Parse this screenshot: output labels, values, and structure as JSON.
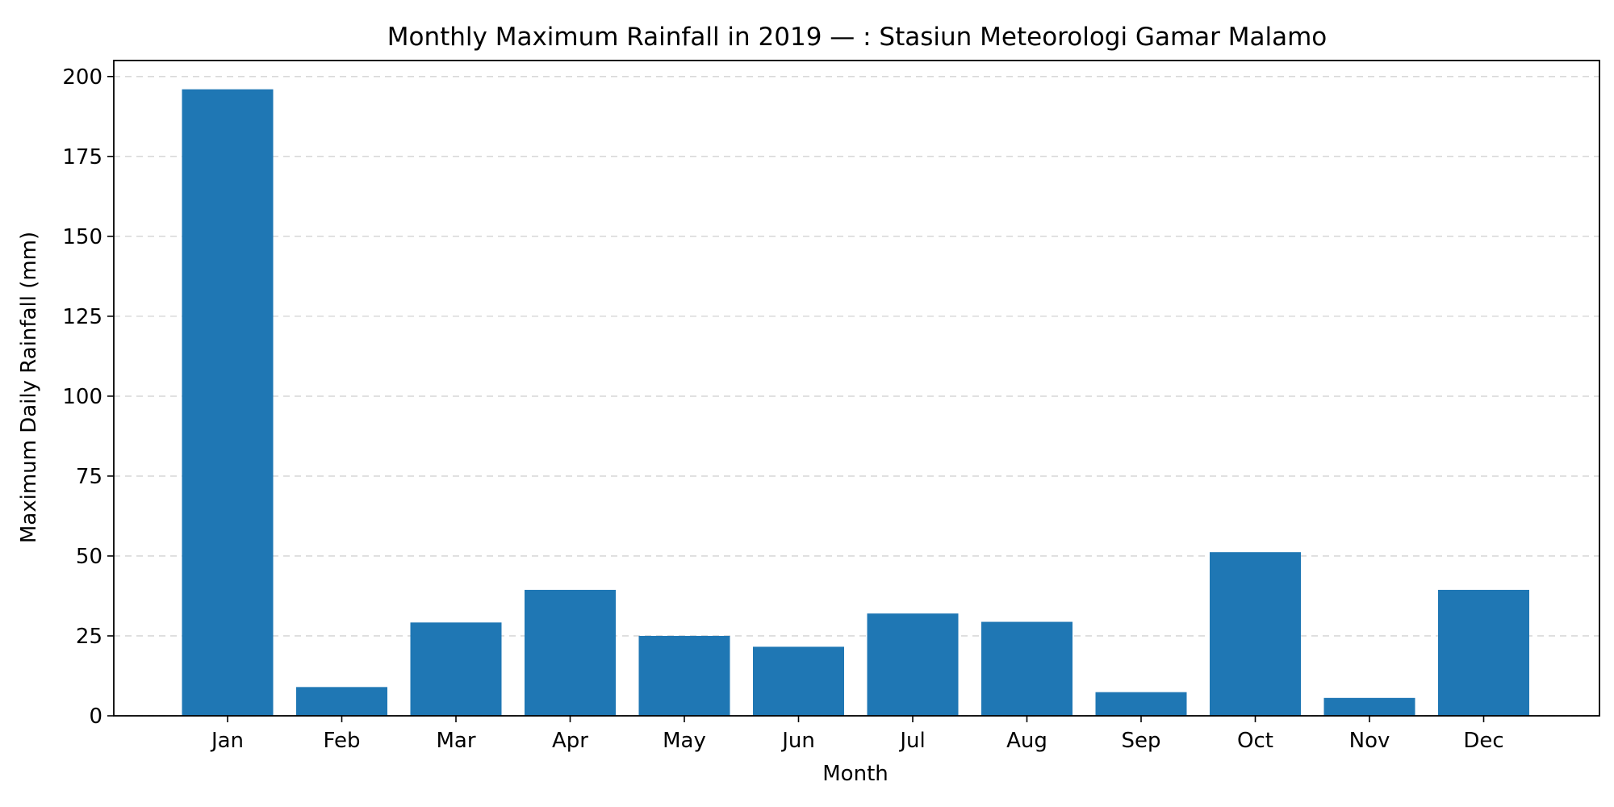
{
  "chart_data": {
    "type": "bar",
    "title": "Monthly Maximum Rainfall in 2019 — :  Stasiun Meteorologi Gamar Malamo",
    "xlabel": "Month",
    "ylabel": "Maximum Daily Rainfall (mm)",
    "categories": [
      "Jan",
      "Feb",
      "Mar",
      "Apr",
      "May",
      "Jun",
      "Jul",
      "Aug",
      "Sep",
      "Oct",
      "Nov",
      "Dec"
    ],
    "values": [
      196,
      9,
      29.2,
      39.4,
      25,
      21.6,
      32,
      29.4,
      7.4,
      51.2,
      5.6,
      39.4
    ],
    "ylim": [
      0,
      205
    ],
    "yticks": [
      0,
      25,
      50,
      75,
      100,
      125,
      150,
      175,
      200
    ],
    "grid": "y-dashed",
    "bar_color": "#1f77b4",
    "grid_color": "#d9d9d9"
  }
}
